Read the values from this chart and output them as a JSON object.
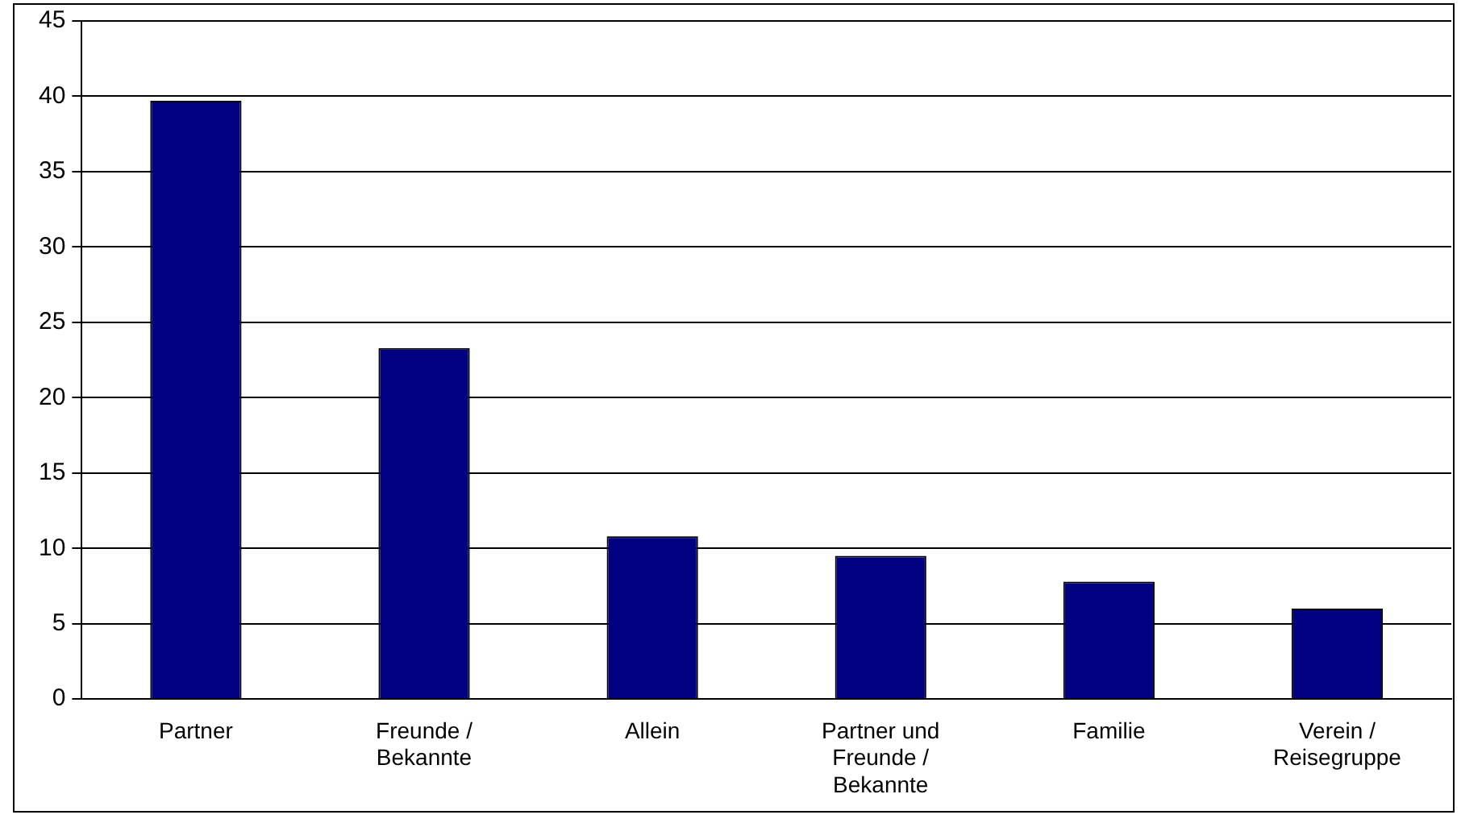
{
  "chart_data": {
    "type": "bar",
    "categories": [
      "Partner",
      "Freunde / Bekannte",
      "Allein",
      "Partner und Freunde / Bekannte",
      "Familie",
      "Verein / Reisegruppe"
    ],
    "values": [
      39.7,
      23.3,
      10.8,
      9.5,
      7.8,
      6.0
    ],
    "color": "#000080",
    "ylim": [
      0,
      45
    ],
    "yticks": [
      0,
      5,
      10,
      15,
      20,
      25,
      30,
      35,
      40,
      45
    ],
    "grid": "y",
    "legend": false
  }
}
